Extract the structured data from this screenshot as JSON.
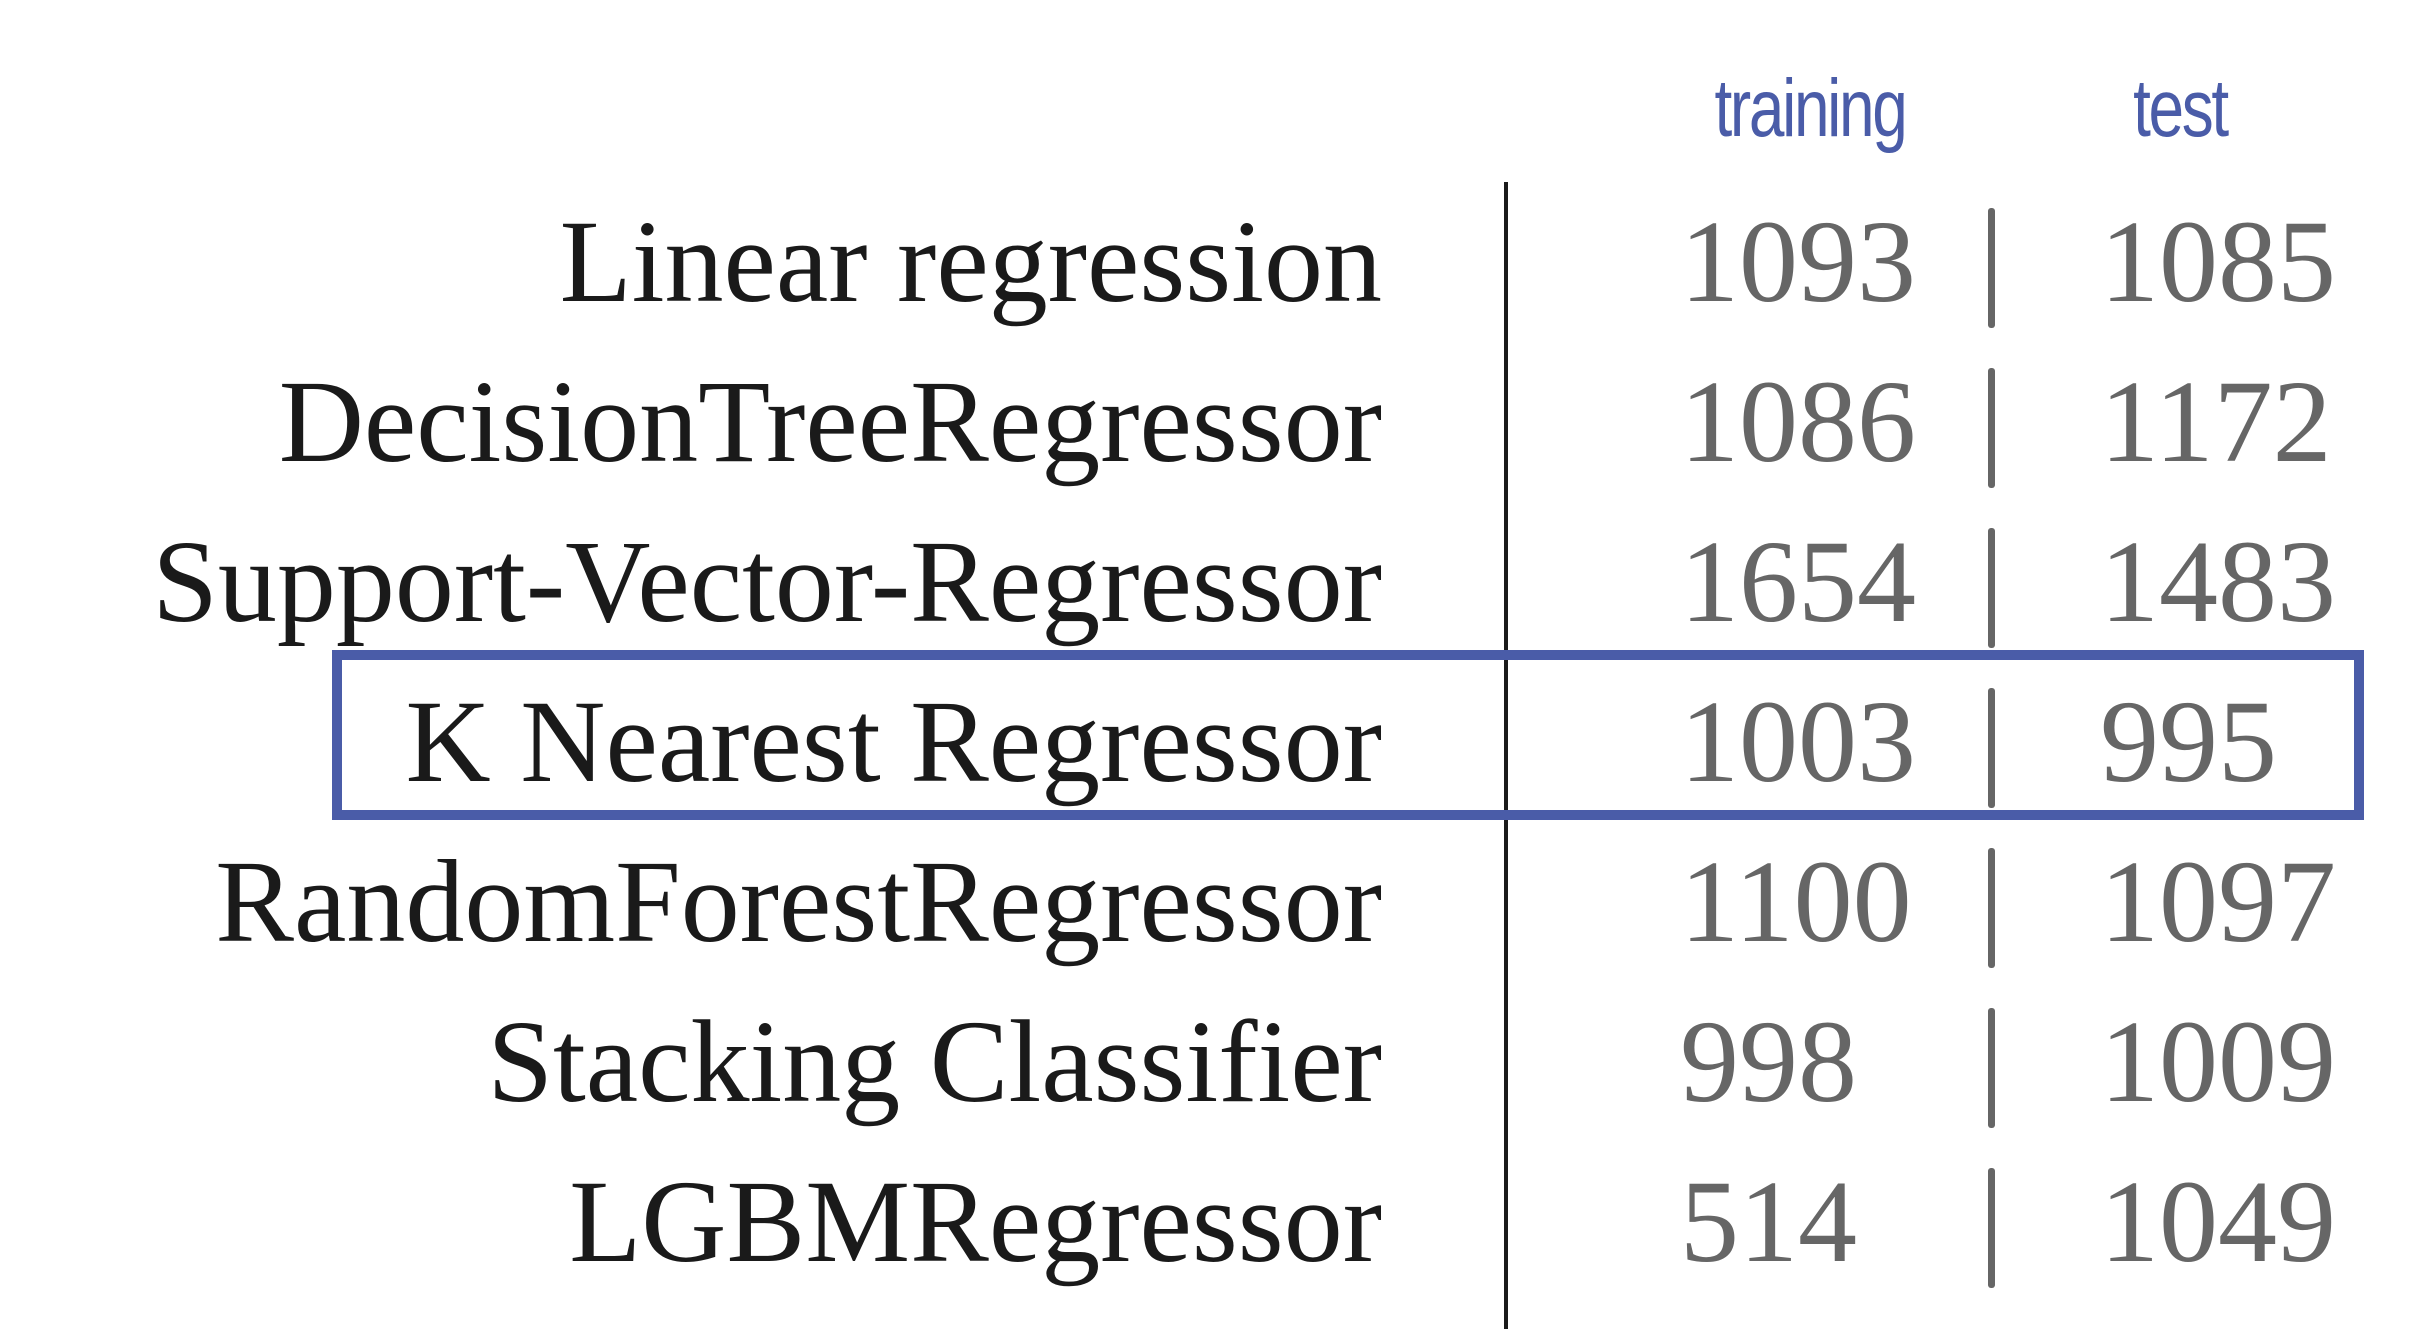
{
  "chart_data": {
    "type": "table",
    "columns": [
      "training",
      "test"
    ],
    "rows": [
      {
        "label": "Linear regression",
        "training": "1093",
        "test": "1085"
      },
      {
        "label": "DecisionTreeRegressor",
        "training": "1086",
        "test": "1172"
      },
      {
        "label": "Support-Vector-Regressor",
        "training": "1654",
        "test": "1483"
      },
      {
        "label": "K Nearest Regressor",
        "training": "1003",
        "test": "995",
        "highlighted": true
      },
      {
        "label": "RandomForestRegressor",
        "training": "1100",
        "test": "1097"
      },
      {
        "label": "Stacking Classifier",
        "training": "998",
        "test": "1009"
      },
      {
        "label": "LGBMRegressor",
        "training": "514",
        "test": "1049"
      }
    ],
    "highlighted_row": "K Nearest Regressor",
    "colors": {
      "header": "#4a5ca8",
      "highlight_border": "#4a5ca8",
      "label_text": "#1a1a1a",
      "value_text": "#666666"
    }
  }
}
